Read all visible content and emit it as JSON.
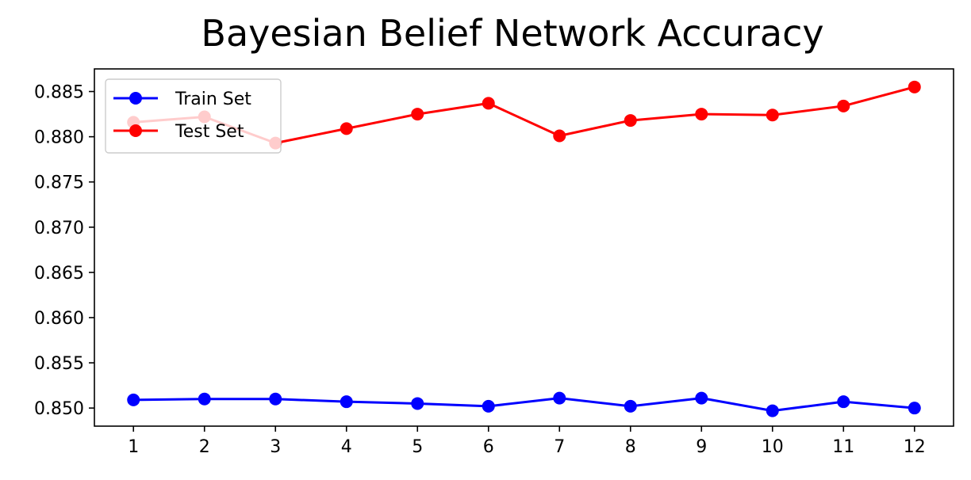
{
  "chart_data": {
    "type": "line",
    "title": "Bayesian Belief Network Accuracy",
    "xlabel": "",
    "ylabel": "",
    "x": [
      1,
      2,
      3,
      4,
      5,
      6,
      7,
      8,
      9,
      10,
      11,
      12
    ],
    "x_tick_labels": [
      "1",
      "2",
      "3",
      "4",
      "5",
      "6",
      "7",
      "8",
      "9",
      "10",
      "11",
      "12"
    ],
    "y_ticks": [
      0.85,
      0.855,
      0.86,
      0.865,
      0.87,
      0.875,
      0.88,
      0.885
    ],
    "y_tick_labels": [
      "0.850",
      "0.855",
      "0.860",
      "0.865",
      "0.870",
      "0.875",
      "0.880",
      "0.885"
    ],
    "xlim": [
      0.45,
      12.55
    ],
    "ylim": [
      0.848,
      0.8875
    ],
    "grid": false,
    "legend_position": "top-left",
    "series": [
      {
        "name": "Train Set",
        "color": "#0000ff",
        "marker": "circle",
        "values": [
          0.8509,
          0.851,
          0.851,
          0.8507,
          0.8505,
          0.8502,
          0.8511,
          0.8502,
          0.8511,
          0.8497,
          0.8507,
          0.85
        ]
      },
      {
        "name": "Test Set",
        "color": "#ff0000",
        "marker": "circle",
        "values": [
          0.8816,
          0.8822,
          0.8793,
          0.8809,
          0.8825,
          0.8837,
          0.8801,
          0.8818,
          0.8825,
          0.8824,
          0.8834,
          0.8855
        ]
      }
    ]
  }
}
